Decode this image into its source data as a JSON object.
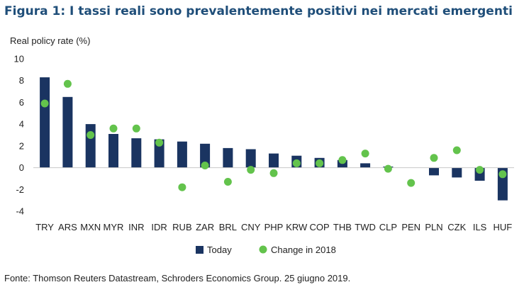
{
  "title": "Figura 1: I tassi reali sono prevalentemente positivi nei mercati emergenti",
  "source": "Fonte: Thomson Reuters Datastream, Schroders Economics Group. 25 giugno 2019.",
  "colors": {
    "bar": "#1a3461",
    "dot": "#63c34c",
    "title": "#1f4e79"
  },
  "chart_data": {
    "type": "bar",
    "ylabel": "Real policy rate (%)",
    "ylim": [
      -4,
      10
    ],
    "yticks": [
      -4,
      -2,
      0,
      2,
      4,
      6,
      8,
      10
    ],
    "grid": false,
    "legend_position": "bottom",
    "categories": [
      "TRY",
      "ARS",
      "MXN",
      "MYR",
      "INR",
      "IDR",
      "RUB",
      "ZAR",
      "BRL",
      "CNY",
      "PHP",
      "KRW",
      "COP",
      "THB",
      "TWD",
      "CLP",
      "PEN",
      "PLN",
      "CZK",
      "ILS",
      "HUF"
    ],
    "series": [
      {
        "name": "Today",
        "kind": "bar",
        "values": [
          8.3,
          6.5,
          4.0,
          3.1,
          2.7,
          2.6,
          2.4,
          2.2,
          1.8,
          1.7,
          1.3,
          1.1,
          0.9,
          0.7,
          0.4,
          0.1,
          0.0,
          -0.7,
          -0.9,
          -1.2,
          -3.0
        ]
      },
      {
        "name": "Change in 2018",
        "kind": "dot",
        "values": [
          5.9,
          7.7,
          3.0,
          3.6,
          3.6,
          2.3,
          -1.8,
          0.2,
          -1.3,
          -0.2,
          -0.5,
          0.4,
          0.4,
          0.7,
          1.3,
          -0.1,
          -1.4,
          0.9,
          1.6,
          -0.2,
          -0.6
        ]
      }
    ]
  }
}
